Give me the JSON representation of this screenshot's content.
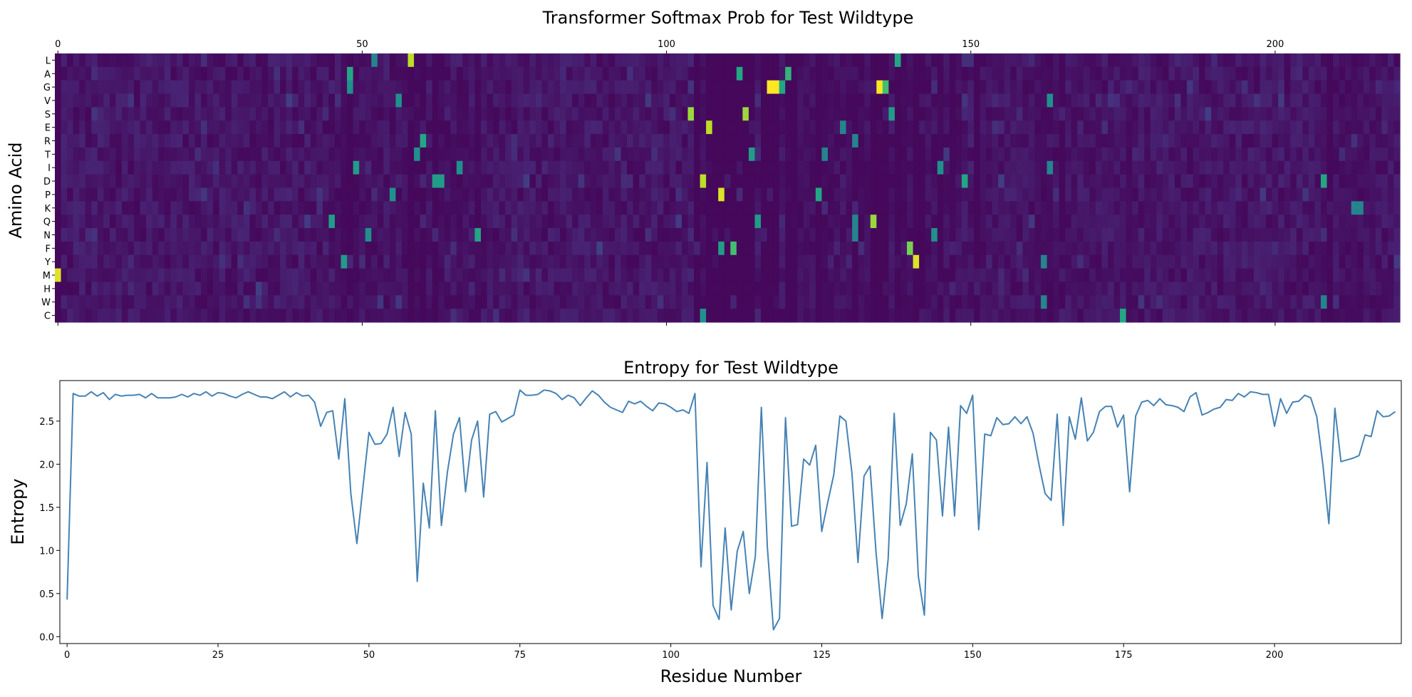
{
  "chart_data": [
    {
      "type": "heatmap",
      "title": "Transformer Softmax Prob for Test Wildtype",
      "ylabel": "Amino Acid",
      "xlabel": "",
      "x_ticks": [
        "0",
        "50",
        "100",
        "150",
        "200"
      ],
      "x_tick_values": [
        0,
        50,
        100,
        150,
        200
      ],
      "xlim": [
        0,
        220
      ],
      "rows": [
        "L",
        "A",
        "G",
        "V",
        "S",
        "E",
        "R",
        "T",
        "I",
        "D",
        "P",
        "K",
        "Q",
        "N",
        "F",
        "Y",
        "M",
        "H",
        "W",
        "C"
      ],
      "n_residues": 221,
      "colormap": "viridis",
      "highlights": [
        {
          "row": "M",
          "pos": 0,
          "v": 0.95
        },
        {
          "row": "L",
          "pos": 58,
          "v": 0.9
        },
        {
          "row": "L",
          "pos": 138,
          "v": 0.6
        },
        {
          "row": "L",
          "pos": 52,
          "v": 0.45
        },
        {
          "row": "A",
          "pos": 48,
          "v": 0.6
        },
        {
          "row": "A",
          "pos": 112,
          "v": 0.6
        },
        {
          "row": "A",
          "pos": 120,
          "v": 0.65
        },
        {
          "row": "G",
          "pos": 117,
          "v": 1.0
        },
        {
          "row": "G",
          "pos": 118,
          "v": 1.0
        },
        {
          "row": "G",
          "pos": 119,
          "v": 0.6
        },
        {
          "row": "G",
          "pos": 135,
          "v": 1.0
        },
        {
          "row": "G",
          "pos": 136,
          "v": 0.7
        },
        {
          "row": "G",
          "pos": 48,
          "v": 0.5
        },
        {
          "row": "V",
          "pos": 56,
          "v": 0.5
        },
        {
          "row": "V",
          "pos": 163,
          "v": 0.5
        },
        {
          "row": "S",
          "pos": 104,
          "v": 0.85
        },
        {
          "row": "S",
          "pos": 113,
          "v": 0.85
        },
        {
          "row": "S",
          "pos": 137,
          "v": 0.55
        },
        {
          "row": "E",
          "pos": 107,
          "v": 0.9
        },
        {
          "row": "E",
          "pos": 129,
          "v": 0.45
        },
        {
          "row": "R",
          "pos": 60,
          "v": 0.6
        },
        {
          "row": "R",
          "pos": 131,
          "v": 0.45
        },
        {
          "row": "T",
          "pos": 59,
          "v": 0.5
        },
        {
          "row": "T",
          "pos": 114,
          "v": 0.55
        },
        {
          "row": "T",
          "pos": 126,
          "v": 0.45
        },
        {
          "row": "I",
          "pos": 49,
          "v": 0.55
        },
        {
          "row": "I",
          "pos": 66,
          "v": 0.5
        },
        {
          "row": "I",
          "pos": 145,
          "v": 0.5
        },
        {
          "row": "I",
          "pos": 163,
          "v": 0.45
        },
        {
          "row": "D",
          "pos": 62,
          "v": 0.55
        },
        {
          "row": "D",
          "pos": 63,
          "v": 0.55
        },
        {
          "row": "D",
          "pos": 106,
          "v": 0.9
        },
        {
          "row": "D",
          "pos": 149,
          "v": 0.6
        },
        {
          "row": "D",
          "pos": 208,
          "v": 0.6
        },
        {
          "row": "P",
          "pos": 55,
          "v": 0.5
        },
        {
          "row": "P",
          "pos": 109,
          "v": 0.95
        },
        {
          "row": "P",
          "pos": 125,
          "v": 0.6
        },
        {
          "row": "K",
          "pos": 213,
          "v": 0.45
        },
        {
          "row": "K",
          "pos": 214,
          "v": 0.45
        },
        {
          "row": "Q",
          "pos": 45,
          "v": 0.55
        },
        {
          "row": "Q",
          "pos": 115,
          "v": 0.55
        },
        {
          "row": "Q",
          "pos": 131,
          "v": 0.45
        },
        {
          "row": "Q",
          "pos": 134,
          "v": 0.85
        },
        {
          "row": "N",
          "pos": 51,
          "v": 0.5
        },
        {
          "row": "N",
          "pos": 69,
          "v": 0.6
        },
        {
          "row": "N",
          "pos": 131,
          "v": 0.45
        },
        {
          "row": "N",
          "pos": 144,
          "v": 0.5
        },
        {
          "row": "F",
          "pos": 109,
          "v": 0.55
        },
        {
          "row": "F",
          "pos": 111,
          "v": 0.7
        },
        {
          "row": "F",
          "pos": 140,
          "v": 0.8
        },
        {
          "row": "Y",
          "pos": 47,
          "v": 0.55
        },
        {
          "row": "Y",
          "pos": 141,
          "v": 0.95
        },
        {
          "row": "Y",
          "pos": 162,
          "v": 0.45
        },
        {
          "row": "W",
          "pos": 162,
          "v": 0.45
        },
        {
          "row": "W",
          "pos": 208,
          "v": 0.45
        },
        {
          "row": "C",
          "pos": 106,
          "v": 0.5
        },
        {
          "row": "C",
          "pos": 175,
          "v": 0.6
        }
      ]
    },
    {
      "type": "line",
      "title": "Entropy for Test Wildtype",
      "xlabel": "Residue Number",
      "ylabel": "Entropy",
      "x_ticks": [
        "0",
        "25",
        "50",
        "75",
        "100",
        "125",
        "150",
        "175",
        "200"
      ],
      "x_tick_values": [
        0,
        25,
        50,
        75,
        100,
        125,
        150,
        175,
        200
      ],
      "y_ticks": [
        "0.0",
        "0.5",
        "1.0",
        "1.5",
        "2.0",
        "2.5"
      ],
      "y_tick_values": [
        0.0,
        0.5,
        1.0,
        1.5,
        2.0,
        2.5
      ],
      "xlim": [
        -1.2,
        221
      ],
      "ylim": [
        -0.08,
        2.97
      ],
      "color": "#4682b4",
      "values": [
        0.43,
        2.82,
        2.79,
        2.79,
        2.84,
        2.79,
        2.83,
        2.75,
        2.81,
        2.79,
        2.8,
        2.8,
        2.81,
        2.77,
        2.82,
        2.77,
        2.77,
        2.77,
        2.78,
        2.81,
        2.78,
        2.82,
        2.8,
        2.84,
        2.79,
        2.83,
        2.82,
        2.79,
        2.77,
        2.81,
        2.84,
        2.81,
        2.78,
        2.78,
        2.76,
        2.8,
        2.84,
        2.78,
        2.83,
        2.79,
        2.8,
        2.72,
        2.44,
        2.6,
        2.62,
        2.06,
        2.76,
        1.66,
        1.08,
        1.73,
        2.37,
        2.23,
        2.24,
        2.35,
        2.66,
        2.09,
        2.6,
        2.35,
        0.64,
        1.78,
        1.26,
        2.62,
        1.29,
        1.91,
        2.35,
        2.54,
        1.68,
        2.28,
        2.5,
        1.62,
        2.58,
        2.61,
        2.49,
        2.53,
        2.57,
        2.86,
        2.8,
        2.8,
        2.81,
        2.86,
        2.85,
        2.82,
        2.75,
        2.8,
        2.77,
        2.68,
        2.77,
        2.85,
        2.8,
        2.72,
        2.66,
        2.63,
        2.6,
        2.73,
        2.7,
        2.73,
        2.67,
        2.62,
        2.71,
        2.7,
        2.66,
        2.61,
        2.63,
        2.59,
        2.82,
        0.81,
        2.02,
        0.36,
        0.2,
        1.26,
        0.31,
        0.99,
        1.22,
        0.5,
        0.93,
        2.66,
        1.03,
        0.08,
        0.21,
        2.54,
        1.28,
        1.3,
        2.06,
        1.99,
        2.22,
        1.22,
        1.56,
        1.88,
        2.56,
        2.5,
        1.9,
        0.86,
        1.86,
        1.98,
        0.97,
        0.21,
        0.9,
        2.59,
        1.29,
        1.54,
        2.12,
        0.7,
        0.25,
        2.37,
        2.28,
        1.4,
        2.43,
        1.4,
        2.68,
        2.59,
        2.8,
        1.24,
        2.35,
        2.33,
        2.54,
        2.46,
        2.47,
        2.55,
        2.47,
        2.55,
        2.36,
        1.99,
        1.66,
        1.58,
        2.58,
        1.29,
        2.55,
        2.29,
        2.77,
        2.27,
        2.37,
        2.61,
        2.67,
        2.67,
        2.43,
        2.57,
        1.68,
        2.56,
        2.72,
        2.74,
        2.68,
        2.76,
        2.69,
        2.68,
        2.66,
        2.61,
        2.78,
        2.83,
        2.57,
        2.6,
        2.64,
        2.66,
        2.75,
        2.74,
        2.82,
        2.78,
        2.84,
        2.83,
        2.81,
        2.81,
        2.44,
        2.76,
        2.59,
        2.72,
        2.73,
        2.8,
        2.77,
        2.55,
        2.0,
        1.31,
        2.65,
        2.03,
        2.05,
        2.07,
        2.1,
        2.34,
        2.32,
        2.62,
        2.55,
        2.56,
        2.61
      ]
    }
  ]
}
